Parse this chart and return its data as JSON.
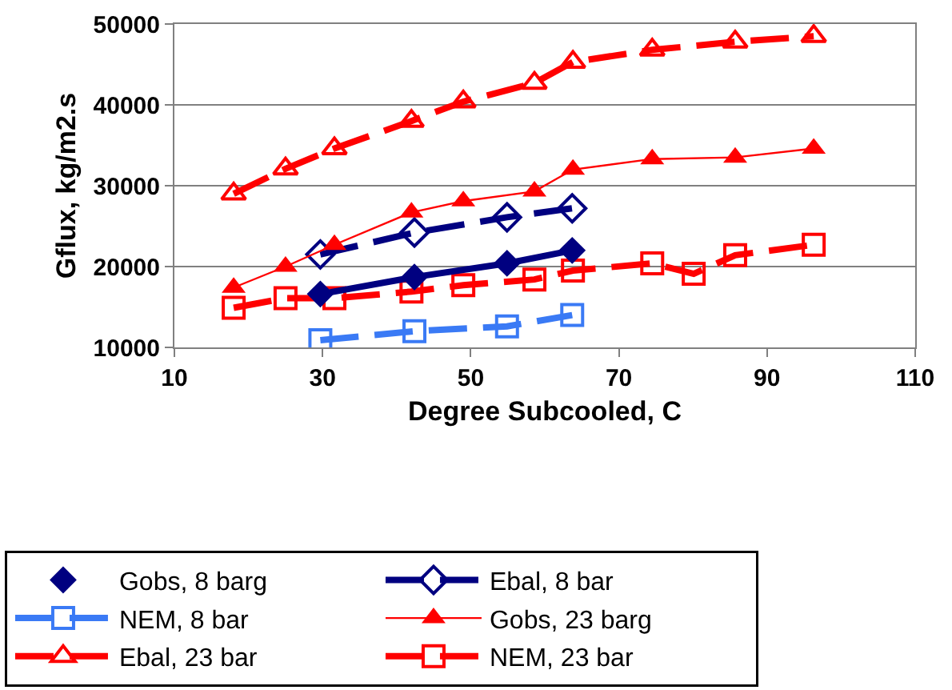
{
  "chart_data": {
    "type": "line",
    "xlabel": "Degree Subcooled, C",
    "ylabel": "Gflux, kg/m2.s",
    "xlim": [
      10,
      110
    ],
    "xticks": [
      10,
      30,
      50,
      70,
      90,
      110
    ],
    "ylim": [
      10000,
      50000
    ],
    "yticks": [
      10000,
      20000,
      30000,
      40000,
      50000
    ],
    "grid": "y",
    "legend": "bottom",
    "series": [
      {
        "name": "Gobs, 8 barg",
        "type": "scatter",
        "color": "#000080",
        "marker": "diamond",
        "x": [
          29.7,
          42.4,
          54.9,
          63.7
        ],
        "values": [
          16600,
          18700,
          20400,
          22000
        ]
      },
      {
        "name": "Ebal, 8 bar",
        "color": "#000080",
        "marker": "diamond",
        "line_style": "dashed",
        "x": [
          29.7,
          42.4,
          54.9,
          63.7
        ],
        "values": [
          21500,
          24200,
          26100,
          27200
        ]
      },
      {
        "name": "NEM, 8 bar",
        "color": "#3a7af5",
        "marker": "square",
        "line_style": "dashed",
        "x": [
          29.7,
          42.4,
          54.9,
          63.7
        ],
        "values": [
          10900,
          12000,
          12600,
          14000
        ]
      },
      {
        "name": "Gobs, 23 barg",
        "color": "#ff0000",
        "marker": "triangle",
        "line_style": "solid",
        "x": [
          18,
          25,
          31.6,
          42,
          49,
          58.6,
          63.8,
          74.5,
          85.7,
          96.3
        ],
        "values": [
          17400,
          20000,
          22700,
          26700,
          28100,
          29300,
          32000,
          33300,
          33500,
          34600
        ]
      },
      {
        "name": "Ebal, 23 bar",
        "color": "#ff0000",
        "marker": "triangle",
        "line_style": "dashed",
        "x": [
          18,
          25,
          31.6,
          42,
          49,
          58.6,
          63.8,
          74.5,
          85.7,
          96.3
        ],
        "values": [
          29000,
          32100,
          34600,
          38000,
          40400,
          42700,
          45300,
          46800,
          47800,
          48500
        ]
      },
      {
        "name": "NEM, 23 bar",
        "color": "#ff0000",
        "marker": "square",
        "line_style": "dashed",
        "x": [
          18,
          25,
          31.6,
          42,
          49,
          58.6,
          63.8,
          74.5,
          80.1,
          85.7,
          96.3
        ],
        "values": [
          14900,
          16100,
          16100,
          16900,
          17700,
          18400,
          19500,
          20400,
          19100,
          21400,
          22700
        ]
      },
      {
        "color": "#000080",
        "marker": "none",
        "line_style": "solid",
        "x": [
          29.7,
          42.4,
          54.9,
          63.7
        ],
        "values": [
          16600,
          18700,
          20400,
          22000
        ]
      }
    ]
  }
}
